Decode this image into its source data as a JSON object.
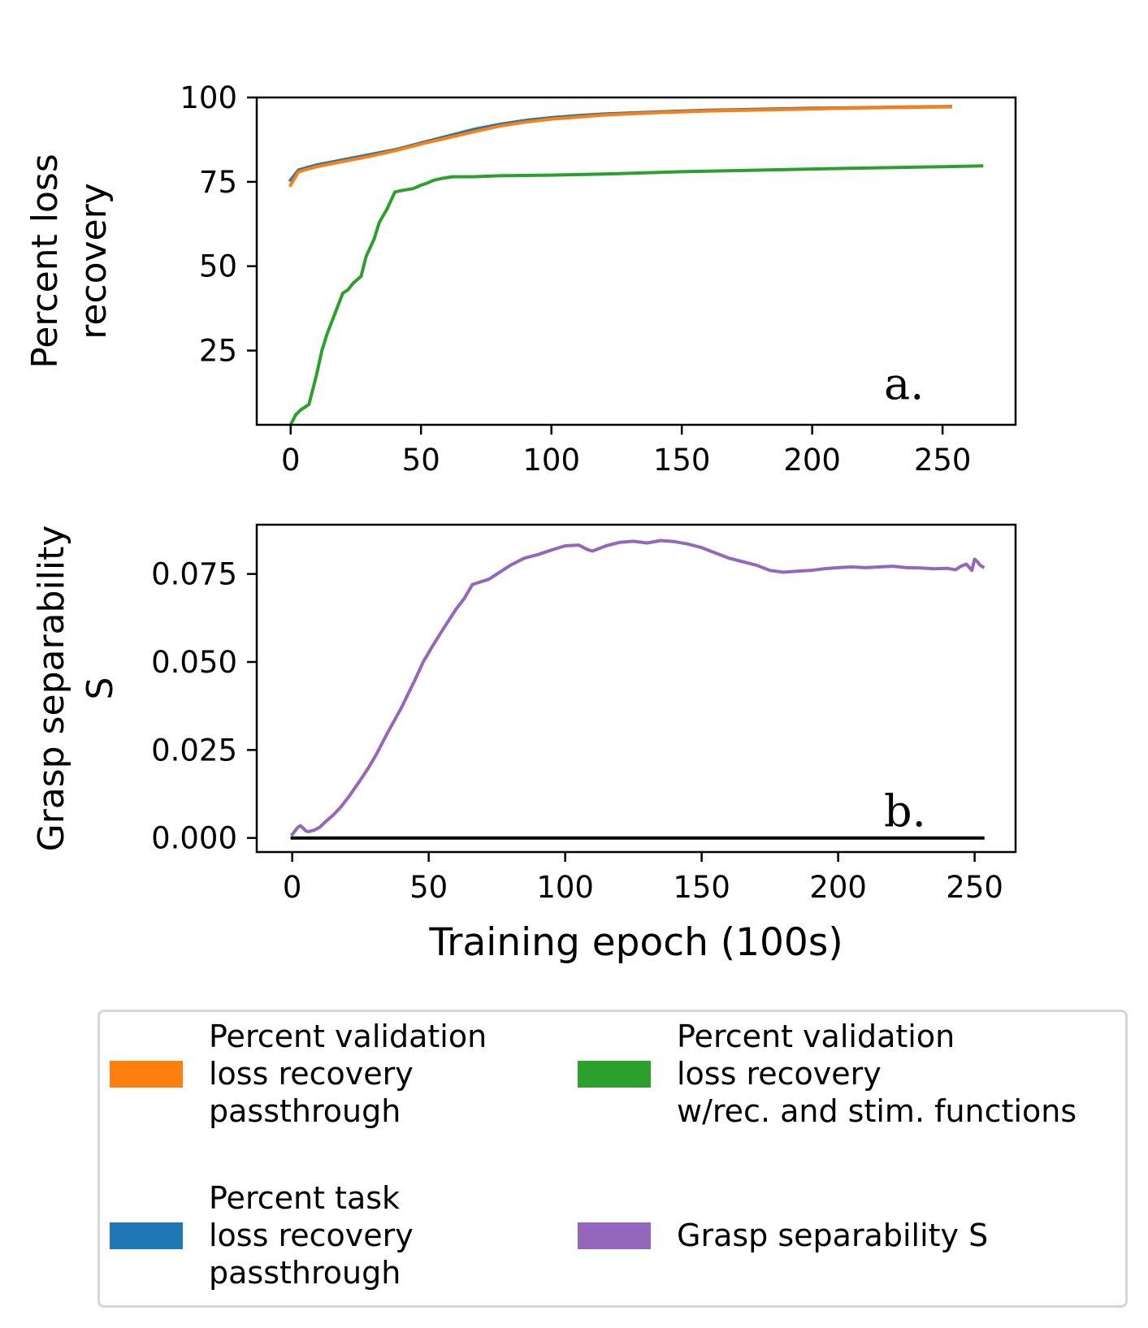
{
  "chart_data": [
    {
      "type": "line",
      "panel_label": "a.",
      "ylabel": "Percent loss\nrecovery",
      "xlabel": "",
      "xlim": [
        -13,
        278
      ],
      "ylim": [
        3,
        100
      ],
      "xticks": [
        0,
        50,
        100,
        150,
        200,
        250
      ],
      "yticks": [
        25,
        50,
        75,
        100
      ],
      "grid": false,
      "series": [
        {
          "name": "Percent task loss recovery passthrough",
          "color": "#1f77b4",
          "x": [
            0,
            3,
            10,
            20,
            30,
            40,
            50,
            60,
            70,
            80,
            90,
            100,
            110,
            120,
            140,
            160,
            180,
            200,
            220,
            240,
            253
          ],
          "y": [
            75.5,
            78.5,
            80,
            81.5,
            83,
            84.5,
            86.5,
            88.5,
            90.5,
            92,
            93.2,
            94,
            94.6,
            95.1,
            95.7,
            96.2,
            96.5,
            96.8,
            97,
            97.2,
            97.3
          ]
        },
        {
          "name": "Percent validation loss recovery passthrough",
          "color": "#ff7f0e",
          "x": [
            0,
            3,
            10,
            20,
            30,
            40,
            50,
            60,
            70,
            80,
            90,
            100,
            110,
            120,
            140,
            160,
            180,
            200,
            220,
            240,
            253
          ],
          "y": [
            74,
            78,
            79.5,
            81,
            82.5,
            84.2,
            86.2,
            88,
            89.8,
            91.5,
            92.7,
            93.6,
            94.2,
            94.8,
            95.5,
            96,
            96.3,
            96.6,
            96.9,
            97.1,
            97.2
          ]
        },
        {
          "name": "Percent validation loss recovery w/rec. and stim. functions",
          "color": "#2ca02c",
          "x": [
            0,
            2,
            4,
            7,
            10,
            12,
            14,
            17,
            20,
            22,
            24,
            27,
            29,
            32,
            34,
            37,
            40,
            43,
            47,
            50,
            52,
            55,
            58,
            62,
            65,
            70,
            80,
            100,
            120,
            150,
            200,
            250,
            265
          ],
          "y": [
            3,
            6,
            7.5,
            9,
            18,
            25,
            30,
            36,
            42,
            43,
            45,
            47,
            53,
            58,
            63,
            67,
            72,
            72.5,
            73,
            74,
            74.5,
            75.5,
            76,
            76.5,
            76.5,
            76.5,
            76.8,
            77,
            77.3,
            78,
            78.8,
            79.5,
            79.7
          ]
        }
      ]
    },
    {
      "type": "line",
      "panel_label": "b.",
      "ylabel": "Grasp separability\nS",
      "xlabel": "Training epoch (100s)",
      "xlim": [
        -13,
        265
      ],
      "ylim": [
        -0.004,
        0.089
      ],
      "xticks": [
        0,
        50,
        100,
        150,
        200,
        250
      ],
      "yticks": [
        0.0,
        0.025,
        0.05,
        0.075
      ],
      "ytick_labels": [
        "0.000",
        "0.025",
        "0.050",
        "0.075"
      ],
      "grid": false,
      "series": [
        {
          "name": "Grasp separability S",
          "color": "#9467bd",
          "x": [
            0,
            2,
            3,
            4,
            5,
            6,
            8,
            10,
            12,
            15,
            18,
            21,
            25,
            28,
            31,
            35,
            40,
            45,
            48,
            51,
            55,
            60,
            63,
            66,
            68,
            72,
            75,
            80,
            85,
            90,
            95,
            100,
            105,
            108,
            110,
            115,
            120,
            125,
            130,
            135,
            140,
            145,
            150,
            155,
            160,
            165,
            170,
            175,
            180,
            185,
            190,
            195,
            200,
            205,
            210,
            215,
            220,
            225,
            230,
            235,
            240,
            243,
            245,
            247,
            249,
            250,
            251,
            252,
            253
          ],
          "y": [
            0.001,
            0.003,
            0.0035,
            0.0028,
            0.002,
            0.0018,
            0.0022,
            0.003,
            0.0045,
            0.0065,
            0.009,
            0.012,
            0.0165,
            0.02,
            0.024,
            0.03,
            0.037,
            0.045,
            0.05,
            0.054,
            0.059,
            0.065,
            0.068,
            0.072,
            0.0725,
            0.0735,
            0.075,
            0.0775,
            0.0795,
            0.0805,
            0.0818,
            0.083,
            0.0832,
            0.082,
            0.0815,
            0.083,
            0.084,
            0.0843,
            0.0838,
            0.0845,
            0.0842,
            0.0835,
            0.0825,
            0.081,
            0.0795,
            0.0785,
            0.0775,
            0.076,
            0.0755,
            0.0758,
            0.076,
            0.0765,
            0.0768,
            0.077,
            0.0768,
            0.077,
            0.0772,
            0.0768,
            0.0767,
            0.0765,
            0.0766,
            0.0762,
            0.0772,
            0.0778,
            0.076,
            0.0792,
            0.0785,
            0.0775,
            0.077
          ]
        },
        {
          "name": "",
          "color": "#000000",
          "x": [
            0,
            253
          ],
          "y": [
            0,
            0
          ]
        }
      ]
    }
  ],
  "legend": {
    "placement": "bottom",
    "entries": [
      {
        "label": "Percent validation\nloss recovery\npassthrough",
        "color": "#ff7f0e"
      },
      {
        "label": "Percent validation\nloss recovery\nw/rec. and stim. functions",
        "color": "#2ca02c"
      },
      {
        "label": "Percent task\nloss recovery\npassthrough",
        "color": "#1f77b4"
      },
      {
        "label": "Grasp separability S",
        "color": "#9467bd"
      }
    ]
  }
}
